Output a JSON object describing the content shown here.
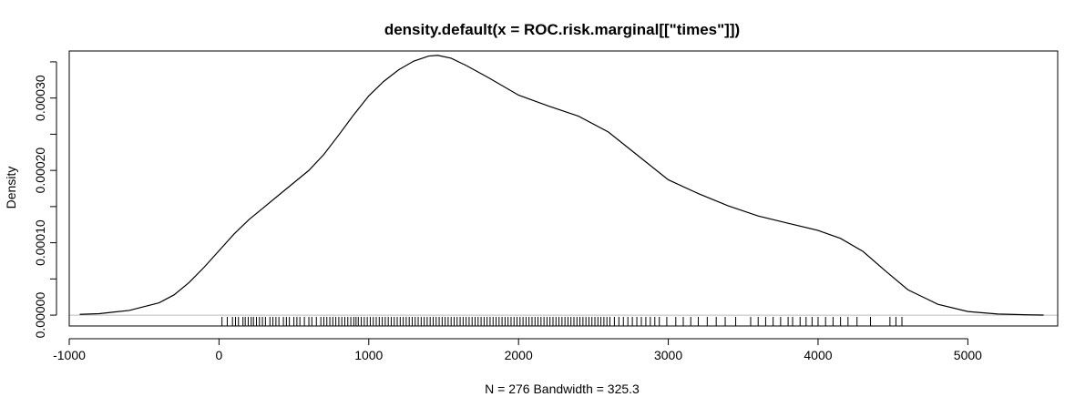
{
  "chart_data": {
    "type": "line",
    "title": "density.default(x = ROC.risk.marginal[[\"times\"]])",
    "xlabel": "N = 276   Bandwidth = 325.3",
    "ylabel": "Density",
    "xlim": [
      -1000,
      5600
    ],
    "ylim": [
      -1.5e-05,
      0.000365
    ],
    "x_ticks": [
      -1000,
      0,
      1000,
      2000,
      3000,
      4000,
      5000
    ],
    "x_tick_labels": [
      "-1000",
      "0",
      "1000",
      "2000",
      "3000",
      "4000",
      "5000"
    ],
    "y_ticks": [
      0,
      0.0001,
      0.0002,
      0.0003
    ],
    "y_tick_labels": [
      "0.00000",
      "0.00010",
      "0.00020",
      "0.00030"
    ],
    "y_minor_ticks": [
      5e-05,
      0.00015,
      0.00025,
      0.00035
    ],
    "zero_line": 0,
    "series": [
      {
        "x": [
          -930,
          -800,
          -600,
          -400,
          -300,
          -200,
          -100,
          0,
          100,
          200,
          300,
          400,
          500,
          600,
          700,
          800,
          900,
          1000,
          1100,
          1200,
          1300,
          1400,
          1460,
          1550,
          1650,
          1800,
          2000,
          2200,
          2400,
          2600,
          2800,
          3000,
          3200,
          3400,
          3600,
          3800,
          4000,
          4150,
          4300,
          4450,
          4600,
          4800,
          5000,
          5200,
          5400,
          5506
        ],
        "y": [
          1e-06,
          2e-06,
          6.5e-06,
          1.7e-05,
          2.8e-05,
          4.5e-05,
          6.6e-05,
          8.9e-05,
          0.000112,
          0.000132,
          0.000149,
          0.000166,
          0.000183,
          0.0002,
          0.000222,
          0.000249,
          0.000277,
          0.000303,
          0.000323,
          0.000339,
          0.000351,
          0.000358,
          0.000359,
          0.000355,
          0.000345,
          0.000328,
          0.000304,
          0.000289,
          0.000275,
          0.000253,
          0.00022,
          0.000187,
          0.000168,
          0.000151,
          0.000137,
          0.000127,
          0.000117,
          0.000106,
          8.8e-05,
          6.1e-05,
          3.5e-05,
          1.5e-05,
          5e-06,
          1.5e-06,
          4e-07,
          1e-07
        ]
      }
    ],
    "rug": [
      20,
      55,
      90,
      110,
      130,
      160,
      175,
      195,
      215,
      230,
      250,
      270,
      290,
      310,
      340,
      360,
      380,
      400,
      430,
      450,
      470,
      500,
      520,
      540,
      570,
      600,
      620,
      650,
      680,
      700,
      720,
      740,
      760,
      780,
      800,
      820,
      840,
      860,
      880,
      900,
      915,
      930,
      950,
      970,
      990,
      1010,
      1030,
      1050,
      1070,
      1090,
      1110,
      1130,
      1150,
      1170,
      1190,
      1210,
      1230,
      1250,
      1270,
      1290,
      1310,
      1330,
      1350,
      1370,
      1390,
      1410,
      1430,
      1450,
      1470,
      1490,
      1510,
      1530,
      1550,
      1570,
      1590,
      1610,
      1630,
      1650,
      1670,
      1690,
      1710,
      1730,
      1750,
      1770,
      1790,
      1810,
      1830,
      1850,
      1870,
      1890,
      1910,
      1930,
      1950,
      1970,
      1990,
      2010,
      2030,
      2050,
      2070,
      2090,
      2110,
      2130,
      2150,
      2170,
      2190,
      2210,
      2230,
      2250,
      2270,
      2290,
      2310,
      2330,
      2350,
      2370,
      2390,
      2410,
      2430,
      2450,
      2470,
      2490,
      2510,
      2530,
      2550,
      2570,
      2590,
      2610,
      2640,
      2670,
      2700,
      2730,
      2760,
      2790,
      2820,
      2850,
      2880,
      2910,
      2940,
      2990,
      3050,
      3100,
      3150,
      3200,
      3260,
      3320,
      3380,
      3450,
      3550,
      3600,
      3650,
      3700,
      3750,
      3800,
      3830,
      3880,
      3920,
      3960,
      4000,
      4050,
      4100,
      4150,
      4200,
      4260,
      4350,
      4480,
      4520,
      4560
    ]
  }
}
